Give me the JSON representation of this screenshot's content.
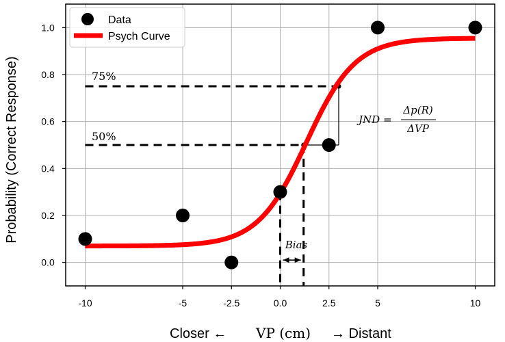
{
  "chart_data": {
    "type": "scatter",
    "ylabel": "Probability (Correct Response)",
    "xlabel": {
      "left": "Closer ←",
      "middle": "VP (cm)",
      "right": "→ Distant"
    },
    "xlim": [
      -11,
      11
    ],
    "ylim": [
      -0.1,
      1.1
    ],
    "x_ticks": [
      -10,
      -5,
      -2.5,
      0.0,
      2.5,
      5,
      10
    ],
    "x_tick_labels": [
      "-10",
      "-5",
      "-2.5",
      "0.0",
      "2.5",
      "5",
      "10"
    ],
    "y_ticks": [
      0.0,
      0.2,
      0.4,
      0.6,
      0.8,
      1.0
    ],
    "y_tick_labels": [
      "0.0",
      "0.2",
      "0.4",
      "0.6",
      "0.8",
      "1.0"
    ],
    "grid": true,
    "legend_placement": "top-left",
    "legend": [
      {
        "label": "Data",
        "kind": "marker",
        "color": "#000000"
      },
      {
        "label": "Psych Curve",
        "kind": "line",
        "color": "#ff0000"
      }
    ],
    "series": [
      {
        "name": "Data",
        "kind": "scatter",
        "color": "#000000",
        "points": [
          {
            "x": -10,
            "y": 0.1
          },
          {
            "x": -5,
            "y": 0.2
          },
          {
            "x": -2.5,
            "y": 0.0
          },
          {
            "x": 0.0,
            "y": 0.3
          },
          {
            "x": 2.5,
            "y": 0.5
          },
          {
            "x": 5,
            "y": 1.0
          },
          {
            "x": 10,
            "y": 1.0
          }
        ]
      },
      {
        "name": "Psych Curve",
        "kind": "line",
        "color": "#ff0000",
        "x_range": [
          -10,
          10
        ],
        "lower_asymptote": 0.07,
        "upper_asymptote": 0.955,
        "midpoint": 1.35,
        "slope": 0.8
      }
    ],
    "annotations": {
      "p75": {
        "label": "75%",
        "y": 0.75,
        "x_end": 3.0
      },
      "p50": {
        "label": "50%",
        "y": 0.5,
        "x_end": 1.2
      },
      "jnd_label": {
        "lhs": "JND",
        "numerator": "Δp(R)",
        "denominator": "ΔVP"
      },
      "bias_label": "Bias",
      "bias_interval": [
        0.0,
        1.2
      ]
    }
  }
}
